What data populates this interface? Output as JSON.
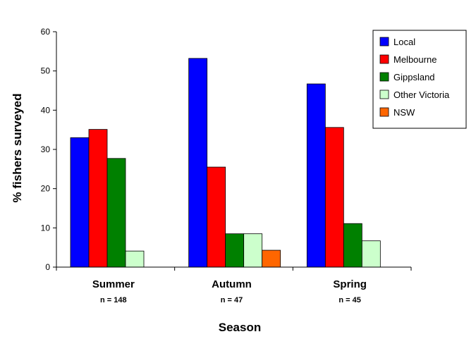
{
  "chart_data": {
    "type": "bar",
    "title": "",
    "xlabel": "Season",
    "ylabel": "% fishers surveyed",
    "ylim": [
      0,
      60
    ],
    "yticks": [
      0,
      10,
      20,
      30,
      40,
      50,
      60
    ],
    "categories": [
      "Summer",
      "Autumn",
      "Spring"
    ],
    "category_notes": [
      "n = 148",
      "n = 47",
      "n = 45"
    ],
    "series": [
      {
        "name": "Local",
        "color": "#0000FF",
        "values": [
          33,
          53.2,
          46.7
        ]
      },
      {
        "name": "Melbourne",
        "color": "#FF0000",
        "values": [
          35.1,
          25.5,
          35.6
        ]
      },
      {
        "name": "Gippsland",
        "color": "#008000",
        "values": [
          27.7,
          8.5,
          11.1
        ]
      },
      {
        "name": "Other Victoria",
        "color": "#CCFFCC",
        "values": [
          4.1,
          8.5,
          6.7
        ]
      },
      {
        "name": "NSW",
        "color": "#FF6600",
        "values": [
          null,
          4.3,
          null
        ]
      }
    ],
    "legend_position": "top-right",
    "grid": false
  }
}
